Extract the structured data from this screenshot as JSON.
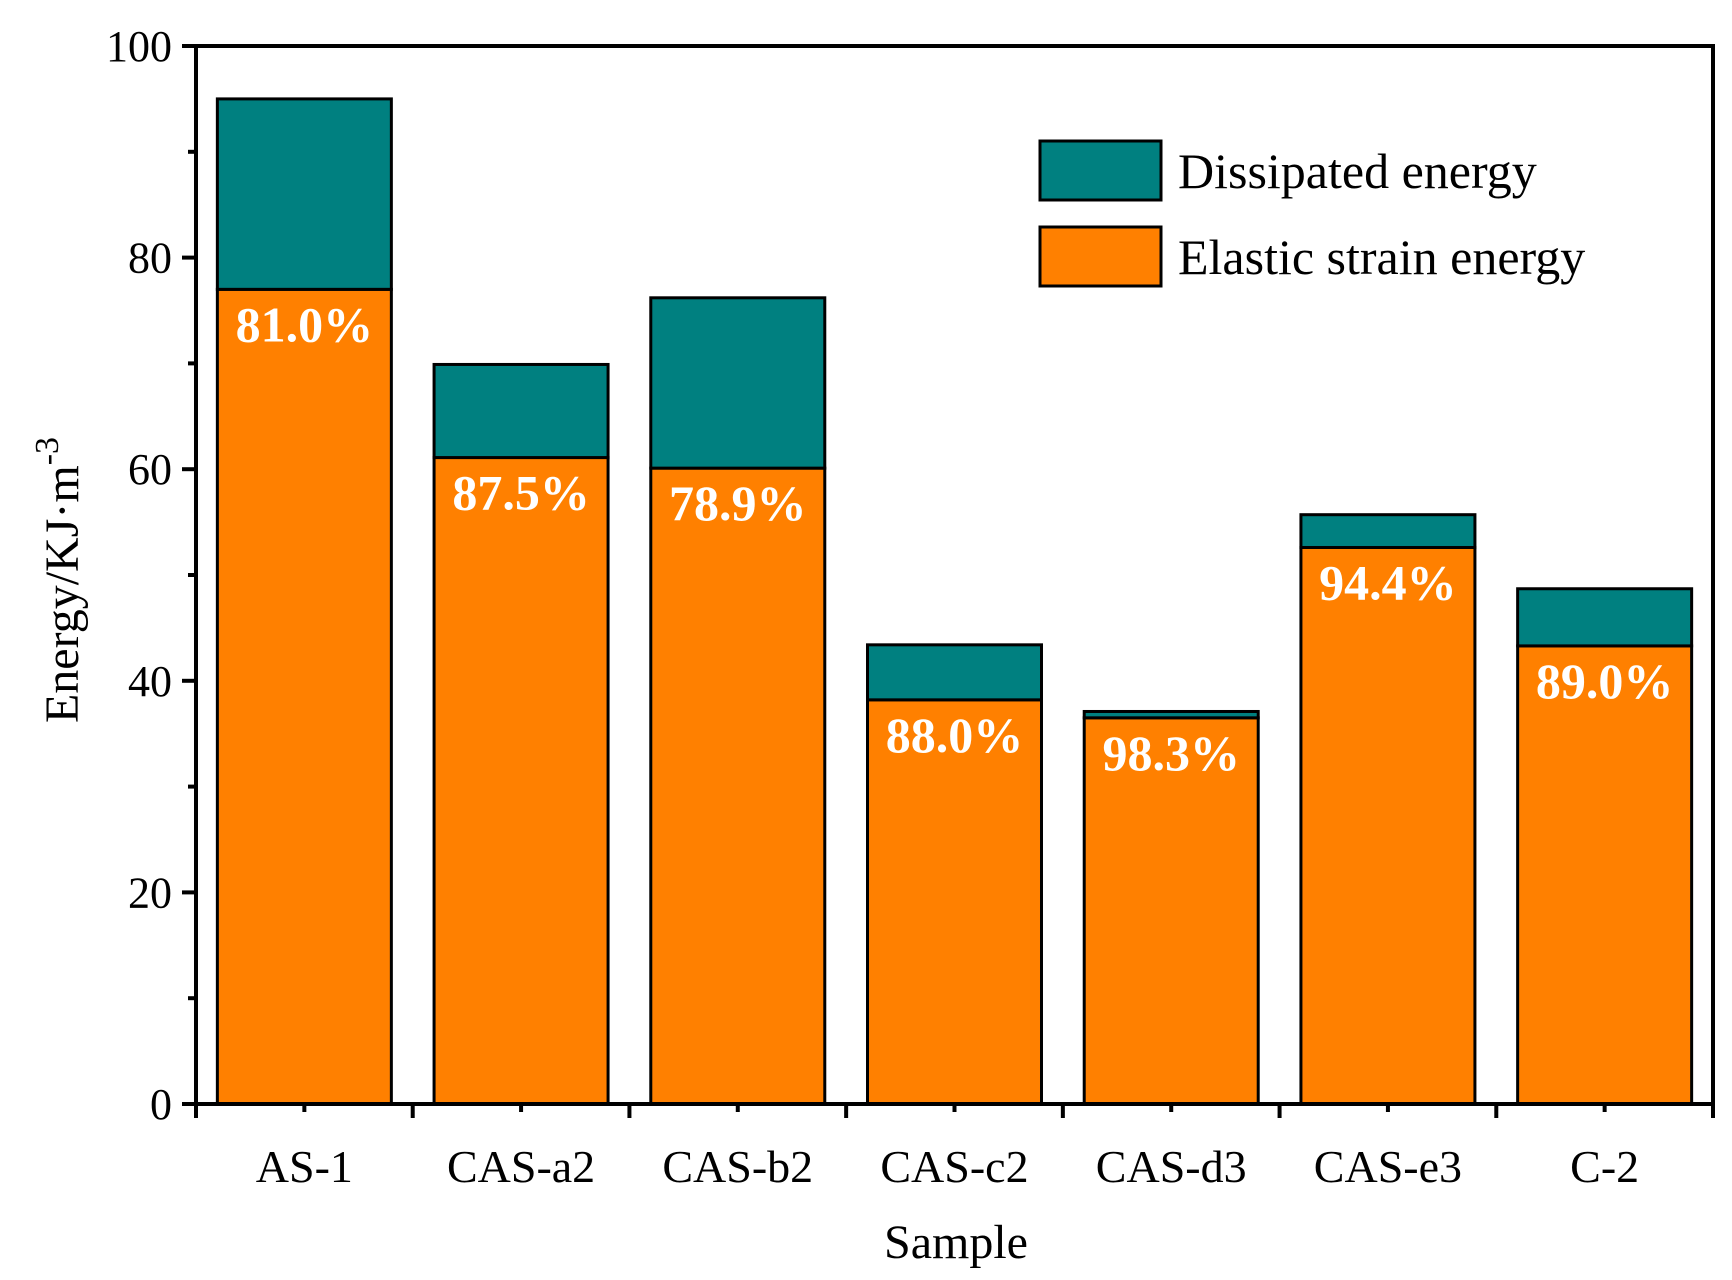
{
  "chart_data": {
    "type": "bar",
    "stacked": true,
    "title": "",
    "xlabel": "Sample",
    "ylabel": "Energy/KJ·m",
    "ylabel_superscript": "-3",
    "ylim": [
      0,
      100
    ],
    "yticks": [
      0,
      20,
      40,
      60,
      80,
      100
    ],
    "categories": [
      "AS-1",
      "CAS-a2",
      "CAS-b2",
      "CAS-c2",
      "CAS-d3",
      "CAS-e3",
      "C-2"
    ],
    "series": [
      {
        "name": "Elastic strain energy",
        "color": "#ff8000",
        "values": [
          77.0,
          61.1,
          60.1,
          38.2,
          36.5,
          52.6,
          43.3
        ]
      },
      {
        "name": "Dissipated energy",
        "color": "#008080",
        "values": [
          18.0,
          8.8,
          16.1,
          5.2,
          0.6,
          3.1,
          5.4
        ]
      }
    ],
    "percent_labels": [
      "81.0%",
      "87.5%",
      "78.9%",
      "88.0%",
      "98.3%",
      "94.4%",
      "89.0%"
    ],
    "percent_label_color": "#ffffff",
    "legend": {
      "position": "top-right",
      "entries": [
        "Dissipated energy",
        "Elastic strain energy"
      ]
    }
  }
}
